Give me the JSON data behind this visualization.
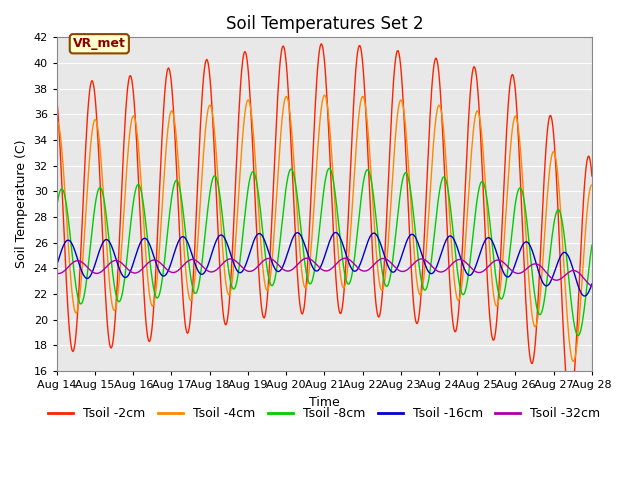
{
  "title": "Soil Temperatures Set 2",
  "xlabel": "Time",
  "ylabel": "Soil Temperature (C)",
  "ylim": [
    16,
    42
  ],
  "yticks": [
    16,
    18,
    20,
    22,
    24,
    26,
    28,
    30,
    32,
    34,
    36,
    38,
    40,
    42
  ],
  "xtick_labels": [
    "Aug 14",
    "Aug 15",
    "Aug 16",
    "Aug 17",
    "Aug 18",
    "Aug 19",
    "Aug 20",
    "Aug 21",
    "Aug 22",
    "Aug 23",
    "Aug 24",
    "Aug 25",
    "Aug 26",
    "Aug 27",
    "Aug 28"
  ],
  "series": [
    {
      "label": "Tsoil -2cm",
      "color": "#FF2200"
    },
    {
      "label": "Tsoil -4cm",
      "color": "#FF8800"
    },
    {
      "label": "Tsoil -8cm",
      "color": "#00CC00"
    },
    {
      "label": "Tsoil -16cm",
      "color": "#0000CC"
    },
    {
      "label": "Tsoil -32cm",
      "color": "#AA00AA"
    }
  ],
  "annotation_text": "VR_met",
  "plot_bg": "#E8E8E8",
  "fig_bg": "#FFFFFF",
  "title_fontsize": 12,
  "axis_label_fontsize": 9,
  "tick_fontsize": 8,
  "legend_fontsize": 9
}
